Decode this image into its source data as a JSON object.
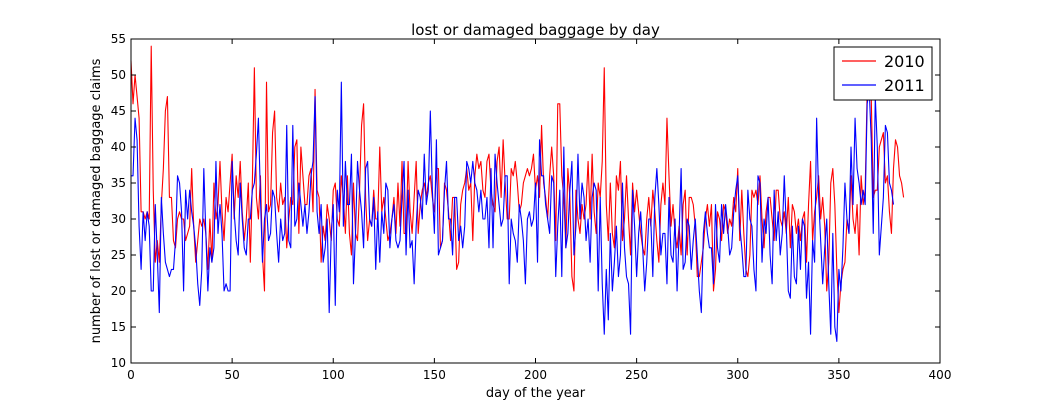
{
  "chart_data": {
    "type": "line",
    "title": "lost or damaged baggage by day",
    "xlabel": "day of the year",
    "ylabel": "number of lost or damaged baggage claims",
    "xlim": [
      0,
      400
    ],
    "ylim": [
      10,
      55
    ],
    "xticks": [
      0,
      50,
      100,
      150,
      200,
      250,
      300,
      350,
      400
    ],
    "yticks": [
      10,
      15,
      20,
      25,
      30,
      35,
      40,
      45,
      50,
      55
    ],
    "grid": false,
    "legend_position": "top-right",
    "series": [
      {
        "name": "2010",
        "color": "#ff0000",
        "x_start": 0,
        "x_step": 1,
        "values": [
          52,
          46,
          50,
          47,
          44,
          31,
          31,
          30,
          31,
          30,
          54,
          34,
          24,
          27,
          24,
          32,
          37,
          45,
          47,
          33,
          33,
          27,
          26,
          30,
          31,
          30,
          30,
          27,
          28,
          29,
          37,
          29,
          24,
          27,
          30,
          29,
          30,
          28,
          23,
          30,
          24,
          35,
          30,
          32,
          38,
          31,
          27,
          33,
          31,
          35,
          39,
          30,
          36,
          33,
          38,
          31,
          27,
          30,
          35,
          24,
          35,
          51,
          33,
          30,
          36,
          25,
          20,
          49,
          31,
          32,
          42,
          45,
          33,
          31,
          35,
          32,
          33,
          26,
          30,
          33,
          32,
          40,
          41,
          28,
          40,
          36,
          32,
          32,
          36,
          37,
          31,
          48,
          34,
          33,
          24,
          29,
          27,
          32,
          30,
          27,
          34,
          35,
          30,
          29,
          36,
          33,
          28,
          36,
          28,
          25,
          35,
          28,
          27,
          34,
          43,
          46,
          33,
          27,
          30,
          29,
          34,
          30,
          30,
          40,
          31,
          33,
          30,
          27,
          28,
          30,
          33,
          28,
          35,
          29,
          38,
          28,
          28,
          38,
          31,
          28,
          33,
          38,
          28,
          32,
          34,
          35,
          33,
          35,
          36,
          33,
          31,
          37,
          37,
          26,
          27,
          35,
          34,
          31,
          27,
          33,
          33,
          23,
          24,
          32,
          34,
          35,
          37,
          34,
          35,
          27,
          36,
          39,
          37,
          38,
          34,
          33,
          38,
          39,
          34,
          32,
          31,
          38,
          40,
          33,
          41,
          35,
          30,
          30,
          37,
          36,
          38,
          35,
          31,
          32,
          35,
          36,
          37,
          36,
          37,
          39,
          34,
          36,
          33,
          43,
          35,
          33,
          30,
          36,
          40,
          36,
          27,
          46,
          46,
          36,
          33,
          26,
          37,
          33,
          22,
          20,
          34,
          30,
          28,
          32,
          30,
          32,
          38,
          30,
          39,
          31,
          28,
          35,
          33,
          38,
          51,
          32,
          27,
          35,
          28,
          26,
          36,
          34,
          38,
          27,
          30,
          36,
          30,
          25,
          35,
          31,
          34,
          31,
          28,
          26,
          25,
          30,
          33,
          29,
          34,
          31,
          27,
          24,
          32,
          35,
          32,
          44,
          36,
          29,
          32,
          28,
          26,
          29,
          25,
          32,
          34,
          25,
          33,
          33,
          32,
          29,
          22,
          22,
          24,
          26,
          30,
          32,
          29,
          32,
          20,
          23,
          31,
          30,
          27,
          32,
          31,
          28,
          30,
          29,
          33,
          31,
          37,
          27,
          34,
          28,
          23,
          22,
          25,
          34,
          33,
          34,
          32,
          36,
          30,
          26,
          31,
          33,
          33,
          30,
          27,
          34,
          34,
          30,
          29,
          31,
          28,
          33,
          26,
          32,
          31,
          28,
          30,
          27,
          30,
          31,
          24,
          32,
          38,
          27,
          31,
          33,
          36,
          30,
          33,
          29,
          20,
          24,
          35,
          37,
          32,
          23,
          17,
          21,
          23,
          24,
          30,
          28,
          36,
          30,
          28,
          32,
          25,
          36,
          32,
          34,
          48,
          50,
          47,
          33,
          34,
          34,
          40,
          41,
          42,
          35,
          36,
          31,
          28,
          37,
          41,
          40,
          36,
          35,
          33
        ]
      },
      {
        "name": "2011",
        "color": "#0000ff",
        "x_start": 0,
        "x_step": 1,
        "values": [
          36,
          36,
          44,
          41,
          29,
          23,
          31,
          27,
          31,
          29,
          20,
          20,
          32,
          25,
          17,
          33,
          28,
          24,
          23,
          22,
          23,
          23,
          27,
          36,
          35,
          31,
          20,
          34,
          30,
          34,
          31,
          29,
          26,
          21,
          18,
          23,
          37,
          28,
          20,
          26,
          24,
          26,
          38,
          28,
          32,
          28,
          20,
          21,
          20,
          20,
          38,
          31,
          27,
          25,
          35,
          30,
          26,
          25,
          30,
          30,
          34,
          35,
          39,
          44,
          33,
          24,
          30,
          32,
          27,
          28,
          34,
          33,
          28,
          24,
          30,
          27,
          28,
          43,
          27,
          26,
          43,
          29,
          30,
          35,
          32,
          29,
          32,
          28,
          31,
          36,
          38,
          47,
          31,
          28,
          32,
          24,
          26,
          30,
          17,
          28,
          32,
          18,
          34,
          31,
          49,
          29,
          38,
          32,
          32,
          39,
          21,
          28,
          38,
          34,
          31,
          26,
          37,
          38,
          30,
          29,
          33,
          23,
          31,
          24,
          31,
          28,
          35,
          34,
          26,
          30,
          32,
          27,
          26,
          27,
          33,
          38,
          25,
          34,
          26,
          27,
          21,
          29,
          34,
          33,
          30,
          39,
          32,
          34,
          45,
          34,
          28,
          41,
          25,
          26,
          27,
          34,
          38,
          30,
          30,
          25,
          33,
          33,
          27,
          29,
          26,
          29,
          38,
          37,
          35,
          38,
          35,
          34,
          31,
          34,
          30,
          30,
          33,
          26,
          37,
          26,
          39,
          35,
          32,
          29,
          30,
          36,
          36,
          21,
          30,
          28,
          27,
          24,
          32,
          30,
          27,
          21,
          30,
          31,
          29,
          30,
          35,
          24,
          41,
          36,
          36,
          32,
          30,
          28,
          36,
          35,
          22,
          29,
          34,
          22,
          40,
          26,
          28,
          34,
          38,
          25,
          29,
          39,
          30,
          35,
          33,
          27,
          30,
          24,
          33,
          35,
          34,
          20,
          33,
          21,
          14,
          23,
          16,
          28,
          20,
          24,
          29,
          22,
          25,
          35,
          26,
          22,
          21,
          14,
          34,
          29,
          22,
          28,
          31,
          26,
          20,
          24,
          30,
          30,
          22,
          33,
          37,
          32,
          25,
          28,
          28,
          21,
          33,
          25,
          24,
          30,
          20,
          28,
          37,
          23,
          24,
          30,
          29,
          23,
          27,
          30,
          25,
          20,
          17,
          28,
          31,
          28,
          26,
          26,
          21,
          32,
          26,
          24,
          32,
          28,
          32,
          29,
          25,
          26,
          31,
          34,
          36,
          29,
          26,
          22,
          22,
          34,
          30,
          29,
          23,
          20,
          36,
          35,
          24,
          30,
          28,
          33,
          25,
          21,
          34,
          27,
          31,
          25,
          28,
          36,
          29,
          20,
          19,
          29,
          22,
          21,
          29,
          23,
          30,
          29,
          19,
          24,
          14,
          27,
          24,
          44,
          33,
          27,
          21,
          26,
          30,
          21,
          14,
          28,
          15,
          13,
          23,
          20,
          26,
          35,
          30,
          28,
          40,
          32,
          44,
          37,
          35,
          32,
          34,
          32,
          46,
          48,
          41,
          28,
          47,
          40,
          25,
          29,
          33,
          43,
          42,
          35,
          34,
          32
        ]
      }
    ]
  }
}
